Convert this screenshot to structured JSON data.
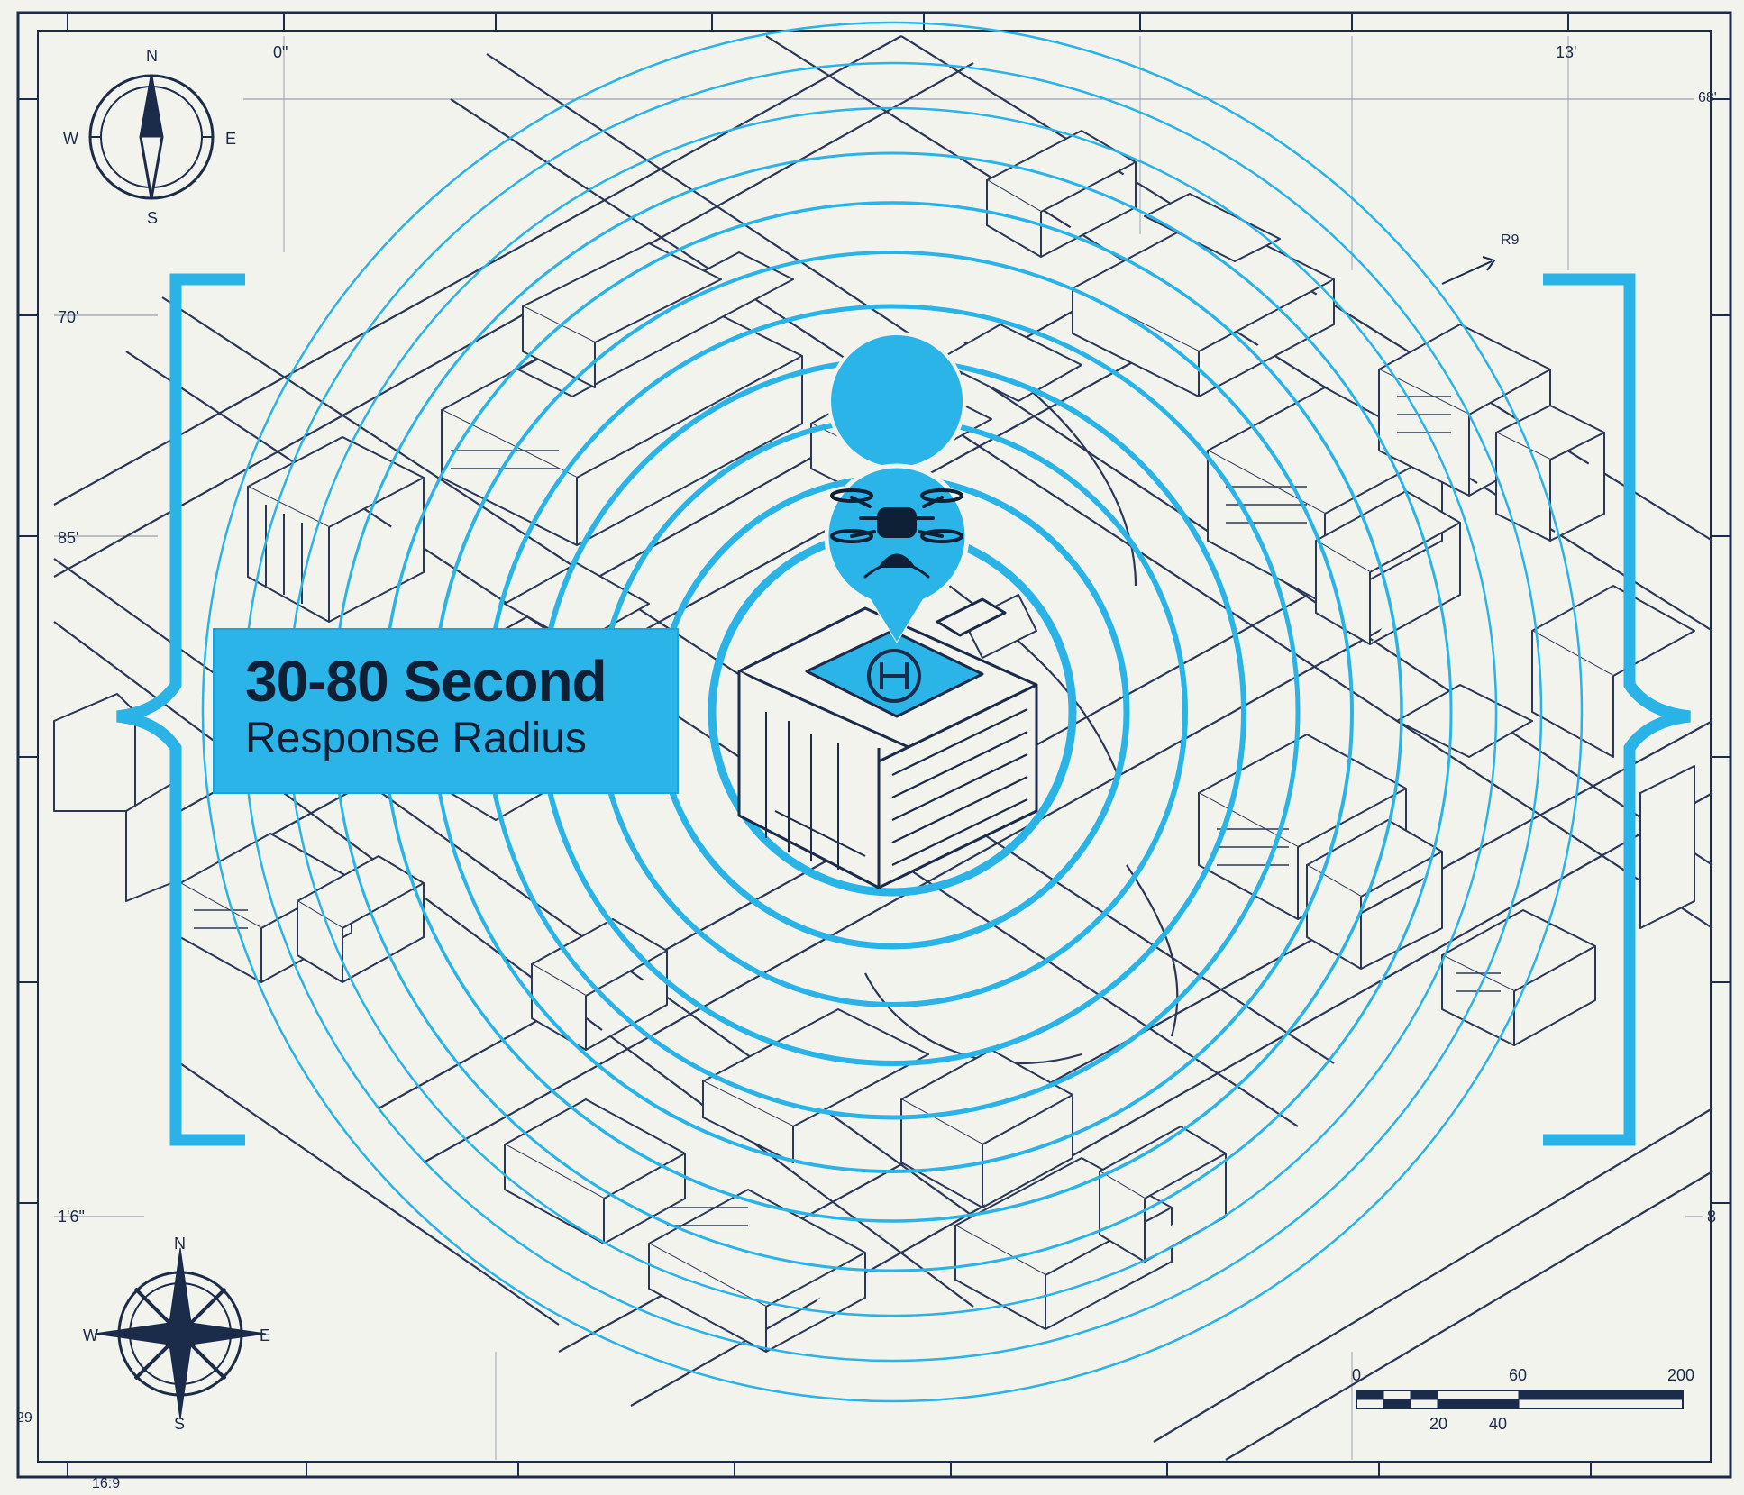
{
  "callout": {
    "title": "30-80 Second",
    "subtitle": "Response Radius"
  },
  "frame_labels": {
    "top_left": "0\"",
    "top_right": "13'",
    "right_top": "68'",
    "left_a": "70'",
    "left_b": "85'",
    "left_c": "1'6\"",
    "right_bottom": "8",
    "left_edge": "29",
    "bottom_left": "16:9",
    "street_tag": "R9"
  },
  "compass_top": {
    "n": "N",
    "s": "S",
    "e": "E",
    "w": "W"
  },
  "compass_bottom": {
    "n": "N",
    "s": "S",
    "e": "E",
    "w": "W"
  },
  "scale_bar": {
    "top_ticks": [
      "0",
      "60",
      "200"
    ],
    "bottom_ticks": [
      "20",
      "40"
    ]
  },
  "icons": [
    "drone-icon",
    "helipad-icon",
    "compass-rose-icon",
    "hospital-building-icon"
  ],
  "colors": {
    "ink": "#1b2b4a",
    "accent": "#2bb4e8",
    "ring": "#29b3e6",
    "paper": "#f3f3ee"
  }
}
